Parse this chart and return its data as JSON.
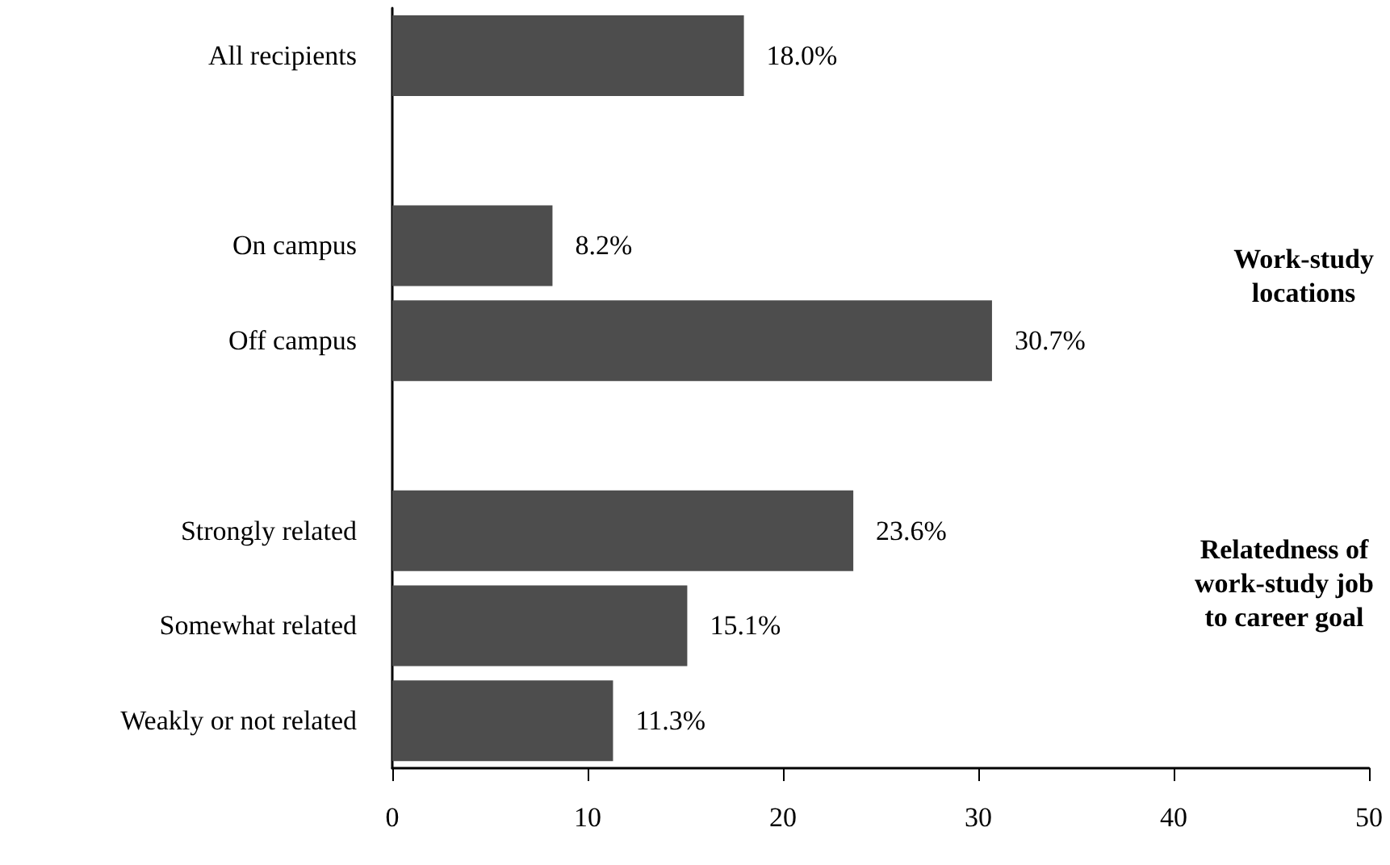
{
  "chart_data": {
    "type": "bar",
    "orientation": "horizontal",
    "categories": [
      "All recipients",
      null,
      "On campus",
      "Off campus",
      null,
      "Strongly related",
      "Somewhat related",
      "Weakly or not related"
    ],
    "values": [
      18.0,
      null,
      8.2,
      30.7,
      null,
      23.6,
      15.1,
      11.3
    ],
    "value_labels": [
      "18.0%",
      null,
      "8.2%",
      "30.7%",
      null,
      "23.6%",
      "15.1%",
      "11.3%"
    ],
    "color": "#4d4d4d",
    "xlim": [
      0,
      50
    ],
    "xticks": [
      0,
      10,
      20,
      30,
      40,
      50
    ],
    "annotations": [
      "Work-study\nlocations",
      "Relatedness of\nwork-study job\nto career goal"
    ]
  }
}
